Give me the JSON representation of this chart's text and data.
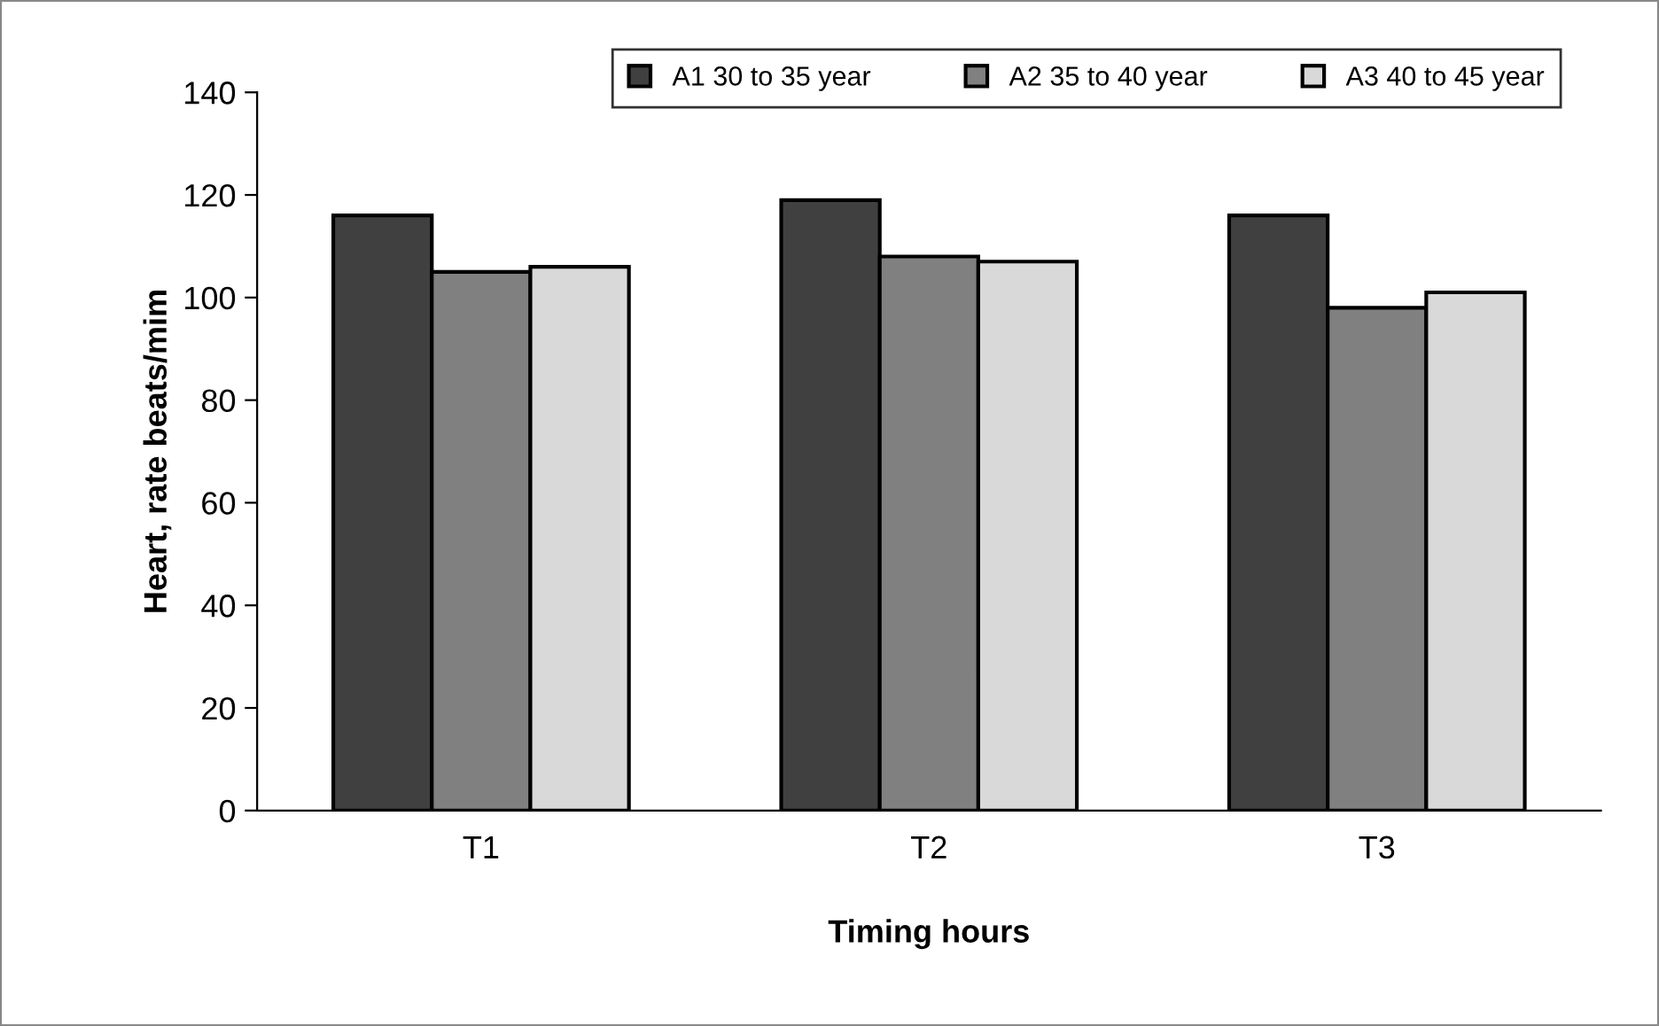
{
  "chart_data": {
    "type": "bar",
    "xlabel": "Timing hours",
    "ylabel": "Heart, rate beats/mim",
    "categories": [
      "T1",
      "T2",
      "T3"
    ],
    "series": [
      {
        "name": "A1 30 to 35 year",
        "color": "#404040",
        "values": [
          116,
          119,
          116
        ]
      },
      {
        "name": "A2 35 to 40 year",
        "color": "#808080",
        "values": [
          105,
          108,
          98
        ]
      },
      {
        "name": "A3 40 to 45 year",
        "color": "#d9d9d9",
        "values": [
          106,
          107,
          101
        ]
      }
    ],
    "ylim": [
      0,
      140
    ],
    "yticks": [
      0,
      20,
      40,
      60,
      80,
      100,
      120,
      140
    ],
    "grid": false,
    "legend": "top"
  }
}
